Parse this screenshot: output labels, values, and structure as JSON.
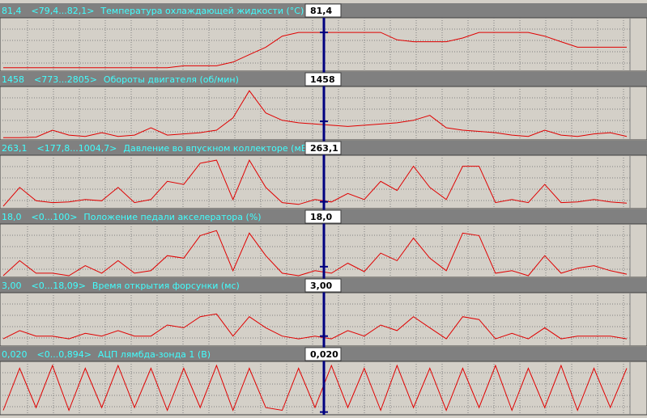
{
  "chart_data": [
    {
      "type": "line",
      "title": "Температура охлаждающей жидкости (°C)",
      "range_label": "<79,4...82,1>",
      "current": {
        "value": 81.4,
        "label": "81,4"
      },
      "ylim": [
        79.4,
        82.1
      ],
      "color": "#e00000",
      "grid": true,
      "values": [
        79.5,
        79.5,
        79.5,
        79.5,
        79.5,
        79.5,
        79.5,
        79.5,
        79.5,
        79.5,
        79.5,
        79.6,
        79.6,
        79.6,
        79.8,
        80.2,
        80.6,
        81.2,
        81.4,
        81.4,
        81.4,
        81.4,
        81.4,
        81.4,
        81.0,
        80.9,
        80.9,
        80.9,
        81.1,
        81.4,
        81.4,
        81.4,
        81.4,
        81.2,
        80.9,
        80.6,
        80.6,
        80.6,
        80.6
      ]
    },
    {
      "type": "line",
      "title": "Обороты двигателя (об/мин)",
      "range_label": "<773...2805>",
      "current": {
        "value": 1458,
        "label": "1458"
      },
      "ylim": [
        773,
        2805
      ],
      "color": "#e00000",
      "grid": true,
      "values": [
        800,
        800,
        820,
        1100,
        900,
        850,
        1000,
        850,
        900,
        1200,
        900,
        950,
        1000,
        1100,
        1600,
        2700,
        1800,
        1500,
        1400,
        1350,
        1300,
        1250,
        1300,
        1350,
        1400,
        1500,
        1700,
        1200,
        1100,
        1050,
        1000,
        900,
        850,
        1100,
        900,
        850,
        950,
        1000,
        850
      ]
    },
    {
      "type": "line",
      "title": "Давление во впускном коллекторе (мБар)",
      "range_label": "<177,8...1004,7>",
      "current": {
        "value": 263.1,
        "label": "263,1"
      },
      "ylim": [
        177.8,
        1004.7
      ],
      "color": "#e00000",
      "grid": true,
      "values": [
        190,
        500,
        280,
        250,
        260,
        300,
        280,
        500,
        250,
        300,
        600,
        550,
        900,
        950,
        300,
        950,
        500,
        250,
        220,
        300,
        260,
        400,
        300,
        600,
        450,
        850,
        500,
        300,
        850,
        850,
        250,
        300,
        250,
        550,
        250,
        260,
        300,
        260,
        240
      ]
    },
    {
      "type": "line",
      "title": "Положение педали акселератора (%)",
      "range_label": "<0...100>",
      "current": {
        "value": 18.0,
        "label": "18,0"
      },
      "ylim": [
        0,
        100
      ],
      "color": "#e00000",
      "grid": true,
      "values": [
        0,
        30,
        5,
        5,
        0,
        20,
        5,
        30,
        5,
        10,
        40,
        35,
        80,
        90,
        10,
        85,
        40,
        5,
        0,
        10,
        5,
        25,
        8,
        45,
        30,
        75,
        35,
        10,
        85,
        80,
        5,
        10,
        0,
        40,
        5,
        15,
        20,
        10,
        3
      ]
    },
    {
      "type": "line",
      "title": "Время открытия форсунки (мс)",
      "range_label": "<0...18,09>",
      "current": {
        "value": 3.0,
        "label": "3,00"
      },
      "ylim": [
        0,
        18.09
      ],
      "color": "#e00000",
      "grid": true,
      "values": [
        2,
        5,
        3,
        3,
        2,
        4,
        3,
        5,
        3,
        3,
        7,
        6,
        10,
        11,
        3,
        10,
        6,
        3,
        2,
        3,
        2,
        5,
        3,
        7,
        5,
        10,
        6,
        2,
        10,
        9,
        2,
        4,
        2,
        6,
        2,
        3,
        3,
        3,
        2
      ]
    },
    {
      "type": "line",
      "title": "АЦП лямбда-зонда 1 (В)",
      "range_label": "<0...0,894>",
      "current": {
        "value": 0.02,
        "label": "0,020"
      },
      "ylim": [
        0,
        0.894
      ],
      "color": "#e00000",
      "grid": true,
      "values": [
        0.05,
        0.8,
        0.1,
        0.85,
        0.05,
        0.8,
        0.1,
        0.85,
        0.1,
        0.8,
        0.05,
        0.8,
        0.1,
        0.85,
        0.05,
        0.8,
        0.1,
        0.05,
        0.8,
        0.1,
        0.85,
        0.1,
        0.8,
        0.05,
        0.85,
        0.1,
        0.8,
        0.05,
        0.8,
        0.1,
        0.85,
        0.05,
        0.8,
        0.1,
        0.85,
        0.05,
        0.8,
        0.1,
        0.8
      ]
    }
  ]
}
